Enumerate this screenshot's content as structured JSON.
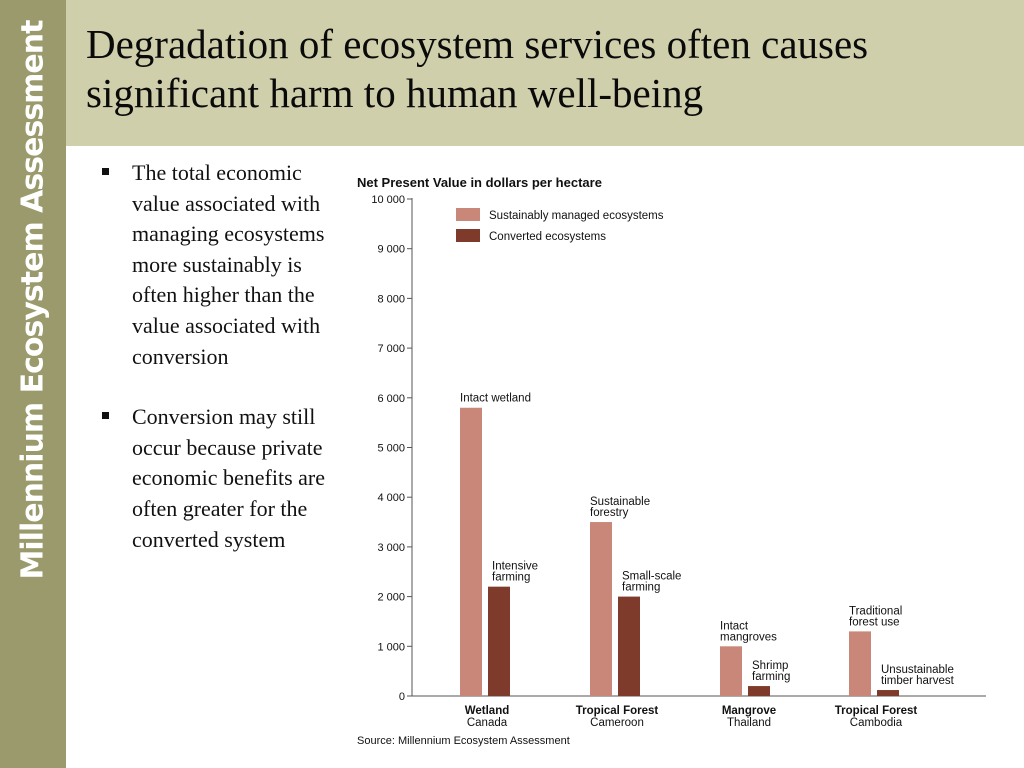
{
  "sidebar": {
    "brand": "Millennium Ecosystem Assessment"
  },
  "header": {
    "title": "Degradation of ecosystem services often causes significant harm to human well-being"
  },
  "bullets": [
    "The total economic value associated with managing ecosystems more sustainably is often higher than the value associated with conversion",
    "Conversion may still occur because private economic benefits are often greater for the converted system"
  ],
  "chart_data": {
    "type": "bar",
    "title": "Net Present Value in dollars per hectare",
    "source": "Source: Millennium Ecosystem Assessment",
    "ylim": [
      0,
      10000
    ],
    "yticks": [
      0,
      1000,
      2000,
      3000,
      4000,
      5000,
      6000,
      7000,
      8000,
      9000,
      10000
    ],
    "ytick_labels": [
      "0",
      "1 000",
      "2 000",
      "3 000",
      "4 000",
      "5 000",
      "6 000",
      "7 000",
      "8 000",
      "9 000",
      "10 000"
    ],
    "grid": false,
    "legend_position": "top-left",
    "categories": [
      {
        "name": "Wetland",
        "location": "Canada"
      },
      {
        "name": "Tropical Forest",
        "location": "Cameroon"
      },
      {
        "name": "Mangrove",
        "location": "Thailand"
      },
      {
        "name": "Tropical Forest",
        "location": "Cambodia"
      }
    ],
    "series": [
      {
        "name": "Sustainably managed ecosystems",
        "color": "#c9877a",
        "values": [
          5800,
          3500,
          1000,
          1300
        ],
        "labels": [
          [
            "Intact wetland"
          ],
          [
            "Sustainable",
            "forestry"
          ],
          [
            "Intact",
            "mangroves"
          ],
          [
            "Traditional",
            "forest use"
          ]
        ]
      },
      {
        "name": "Converted ecosystems",
        "color": "#7e3b2c",
        "values": [
          2200,
          2000,
          200,
          120
        ],
        "labels": [
          [
            "Intensive",
            "farming"
          ],
          [
            "Small-scale",
            "farming"
          ],
          [
            "Shrimp",
            "farming"
          ],
          [
            "Unsustainable",
            "timber harvest"
          ]
        ]
      }
    ]
  }
}
